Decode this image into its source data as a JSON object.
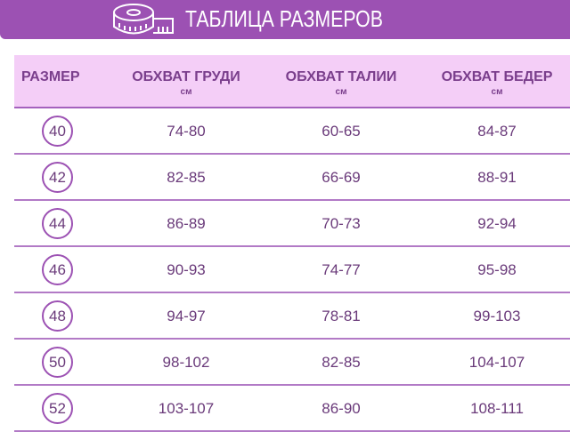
{
  "banner": {
    "title": "ТАБЛИЦА РАЗМЕРОВ",
    "icon": "measuring-tape-icon"
  },
  "colors": {
    "accent": "#9c51b3",
    "header_bg": "#f4cef7",
    "text": "#6a3a7a"
  },
  "table": {
    "headers": [
      {
        "label": "РАЗМЕР",
        "unit": ""
      },
      {
        "label": "ОБХВАТ ГРУДИ",
        "unit": "см"
      },
      {
        "label": "ОБХВАТ ТАЛИИ",
        "unit": "см"
      },
      {
        "label": "ОБХВАТ БЕДЕР",
        "unit": "см"
      }
    ],
    "rows": [
      [
        "40",
        "74-80",
        "60-65",
        "84-87"
      ],
      [
        "42",
        "82-85",
        "66-69",
        "88-91"
      ],
      [
        "44",
        "86-89",
        "70-73",
        "92-94"
      ],
      [
        "46",
        "90-93",
        "74-77",
        "95-98"
      ],
      [
        "48",
        "94-97",
        "78-81",
        "99-103"
      ],
      [
        "50",
        "98-102",
        "82-85",
        "104-107"
      ],
      [
        "52",
        "103-107",
        "86-90",
        "108-111"
      ]
    ]
  }
}
